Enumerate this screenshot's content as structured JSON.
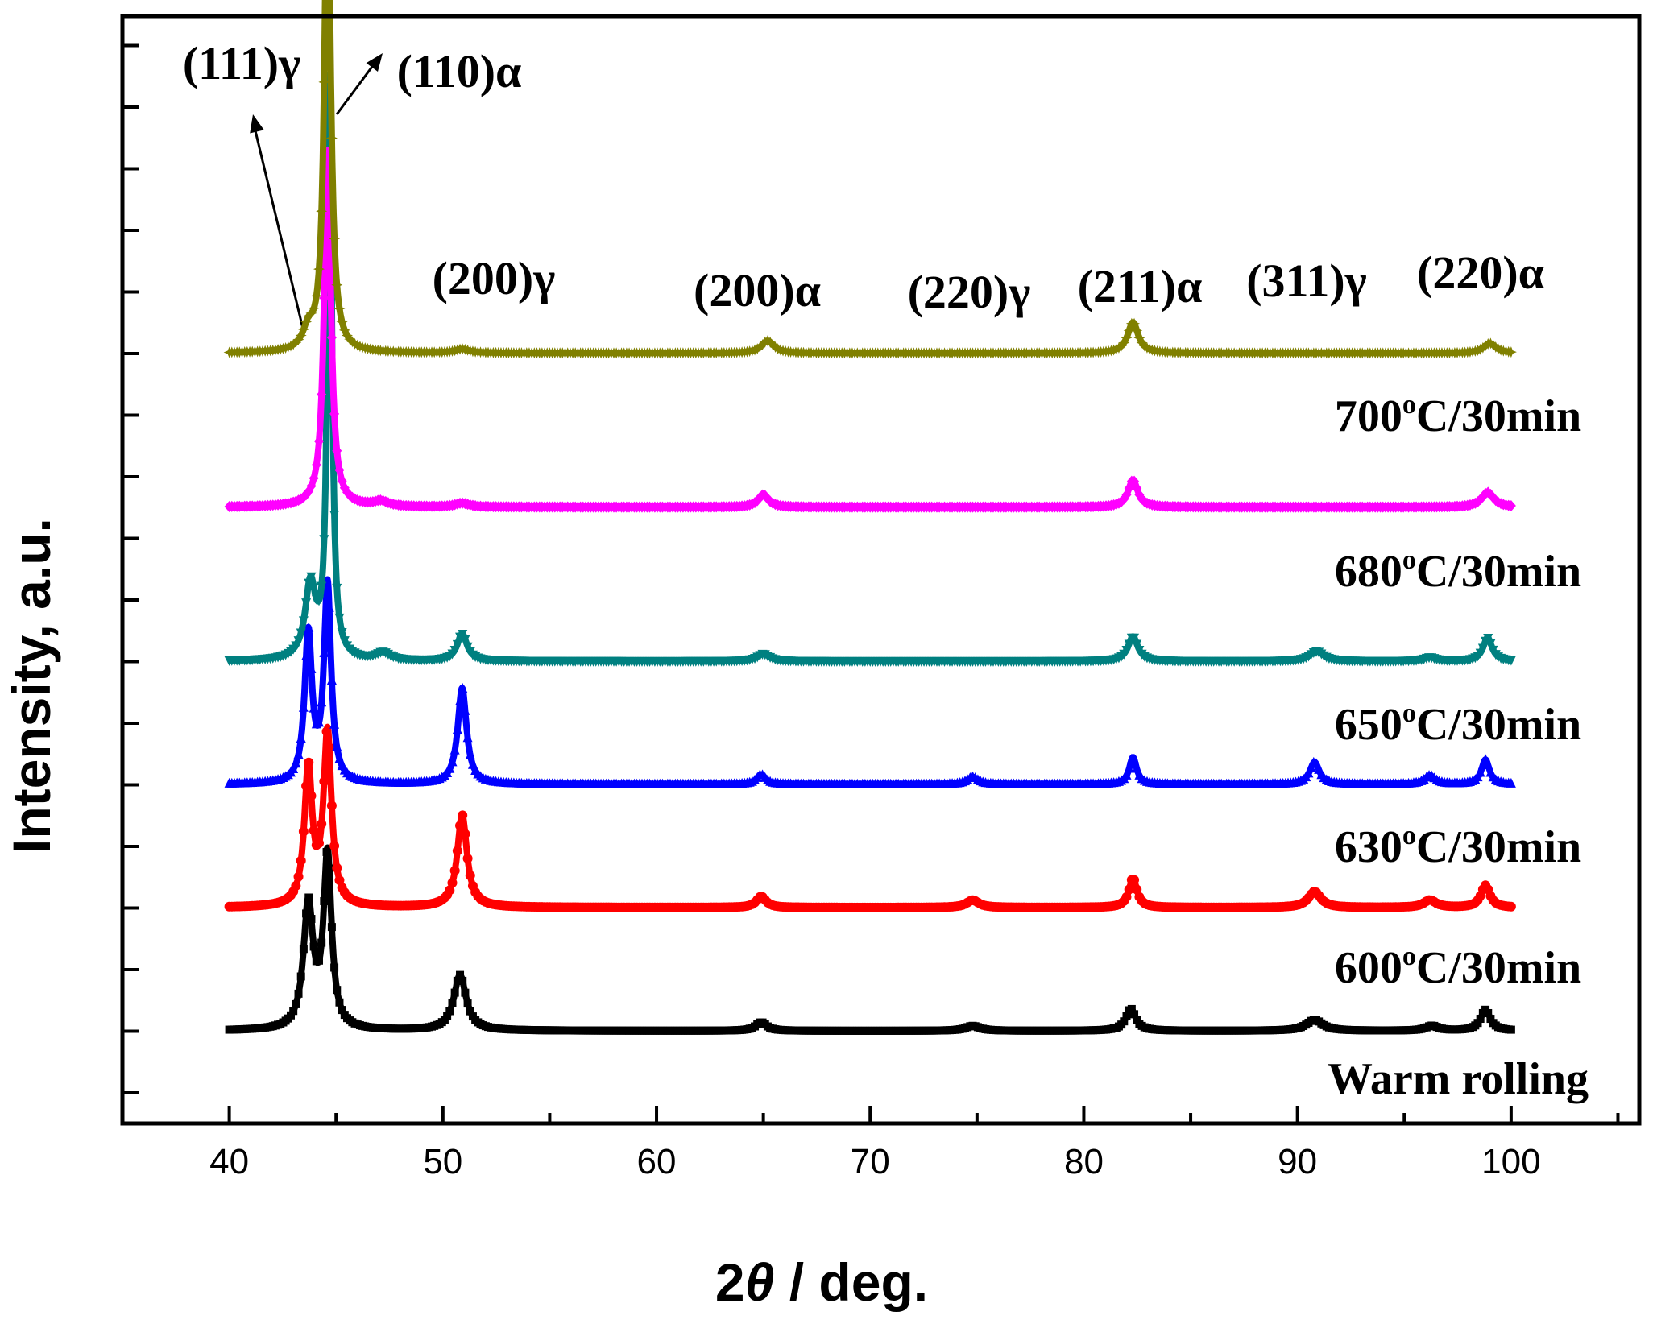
{
  "chart_data": {
    "type": "line",
    "xlabel_num": "2",
    "xlabel_theta": "θ",
    "xlabel_rest": " / deg.",
    "ylabel": "Intensity, a.u.",
    "xlim": [
      35,
      106
    ],
    "x_ticks": [
      40,
      50,
      60,
      70,
      80,
      90,
      100
    ],
    "x_range": [
      40,
      100
    ],
    "y_minor_tick_count": 18,
    "grid": false,
    "peak_labels": [
      {
        "text": "(111)γ",
        "pos": 44.5
      },
      {
        "text": "(110)α",
        "pos": 44.7
      },
      {
        "text": "(200)γ",
        "pos": 50.9
      },
      {
        "text": "(200)α",
        "pos": 65.1
      },
      {
        "text": "(220)γ",
        "pos": 74.8
      },
      {
        "text": "(211)α",
        "pos": 82.3
      },
      {
        "text": "(311)γ",
        "pos": 91.0
      },
      {
        "text": "(220)α",
        "pos": 99.0
      }
    ],
    "series": [
      {
        "name": "Warm rolling",
        "color": "#000000",
        "marker": "square",
        "baseline": 0.0,
        "peaks": [
          [
            43.7,
            1.0,
            0.55
          ],
          [
            44.6,
            1.4,
            0.45
          ],
          [
            50.8,
            0.45,
            0.7
          ],
          [
            64.9,
            0.07,
            0.6
          ],
          [
            74.8,
            0.04,
            0.8
          ],
          [
            82.2,
            0.18,
            0.55
          ],
          [
            90.8,
            0.09,
            0.9
          ],
          [
            96.3,
            0.04,
            0.7
          ],
          [
            98.8,
            0.17,
            0.55
          ]
        ]
      },
      {
        "name": "600°C/30min",
        "color": "#ff0000",
        "marker": "circle",
        "baseline": 1.0,
        "peaks": [
          [
            43.7,
            1.1,
            0.45
          ],
          [
            44.6,
            1.4,
            0.45
          ],
          [
            50.9,
            0.75,
            0.55
          ],
          [
            64.9,
            0.09,
            0.55
          ],
          [
            74.8,
            0.06,
            0.7
          ],
          [
            82.3,
            0.24,
            0.45
          ],
          [
            90.8,
            0.13,
            0.7
          ],
          [
            96.2,
            0.06,
            0.7
          ],
          [
            98.8,
            0.18,
            0.5
          ]
        ]
      },
      {
        "name": "630°C/30min",
        "color": "#0000ff",
        "marker": "triangle-up",
        "baseline": 2.0,
        "peaks": [
          [
            43.7,
            1.2,
            0.42
          ],
          [
            44.6,
            1.6,
            0.4
          ],
          [
            50.9,
            0.78,
            0.5
          ],
          [
            64.9,
            0.08,
            0.5
          ],
          [
            74.8,
            0.06,
            0.6
          ],
          [
            82.3,
            0.22,
            0.42
          ],
          [
            90.8,
            0.18,
            0.55
          ],
          [
            96.2,
            0.07,
            0.6
          ],
          [
            98.8,
            0.2,
            0.45
          ]
        ]
      },
      {
        "name": "650°C/30min",
        "color": "#008080",
        "marker": "triangle-down",
        "baseline": 3.0,
        "peaks": [
          [
            43.8,
            0.6,
            0.6
          ],
          [
            44.7,
            4.7,
            0.25
          ],
          [
            47.2,
            0.06,
            0.8
          ],
          [
            50.9,
            0.22,
            0.55
          ],
          [
            65.0,
            0.06,
            0.7
          ],
          [
            82.3,
            0.2,
            0.55
          ],
          [
            90.9,
            0.08,
            0.8
          ],
          [
            96.2,
            0.03,
            0.7
          ],
          [
            98.9,
            0.19,
            0.5
          ]
        ]
      },
      {
        "name": "680°C/30min",
        "color": "#ff00ff",
        "marker": "diamond",
        "baseline": 4.25,
        "peaks": [
          [
            44.6,
            2.9,
            0.38
          ],
          [
            47.1,
            0.04,
            0.8
          ],
          [
            50.9,
            0.03,
            0.8
          ],
          [
            65.0,
            0.1,
            0.6
          ],
          [
            82.3,
            0.22,
            0.55
          ],
          [
            98.9,
            0.12,
            0.7
          ]
        ]
      },
      {
        "name": "700°C/30min",
        "color": "#808000",
        "marker": "star",
        "baseline": 5.5,
        "peaks": [
          [
            43.7,
            0.15,
            0.6
          ],
          [
            44.6,
            4.0,
            0.35
          ],
          [
            50.9,
            0.03,
            0.8
          ],
          [
            65.2,
            0.1,
            0.7
          ],
          [
            82.3,
            0.25,
            0.6
          ],
          [
            99.0,
            0.08,
            0.7
          ]
        ]
      }
    ]
  }
}
